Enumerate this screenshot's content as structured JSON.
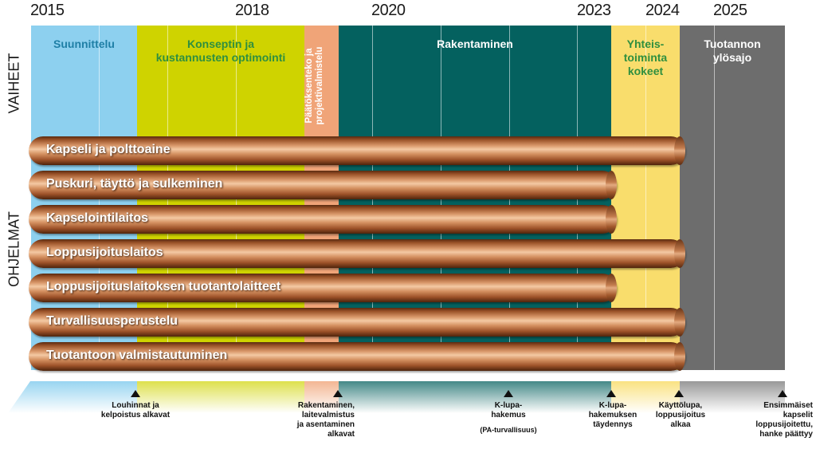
{
  "years": [
    "2015",
    "2018",
    "2020",
    "2023",
    "2024",
    "2025"
  ],
  "side_labels": {
    "phases": "VAIHEET",
    "programs": "OHJELMAT"
  },
  "phases": [
    {
      "lines": [
        "Suunnittelu"
      ],
      "color": "#8dd0ef",
      "text_color": "#1f7fa6"
    },
    {
      "lines": [
        "Konseptin ja",
        "kustannusten optimointi"
      ],
      "color": "#cfd300",
      "text_color": "#2f8f3f"
    },
    {
      "lines": [
        "Päätöksenteko ja",
        "projektivalmistelu"
      ],
      "color": "#f0a478",
      "text_color": "#ffffff"
    },
    {
      "lines": [
        "Rakentaminen"
      ],
      "color": "#04615f",
      "text_color": "#ffffff"
    },
    {
      "lines": [
        "Yhteis-",
        "toiminta",
        "kokeet"
      ],
      "color": "#f9dd6c",
      "text_color": "#2f8f3f"
    },
    {
      "lines": [
        "Tuotannon",
        "ylösajo"
      ],
      "color": "#6d6d6d",
      "text_color": "#ffffff"
    }
  ],
  "programs": [
    {
      "label": "Kapseli ja polttoaine",
      "end_year": "2024"
    },
    {
      "label": "Puskuri, täyttö ja sulkeminen",
      "end_year": "2023"
    },
    {
      "label": "Kapselointilaitos",
      "end_year": "2023"
    },
    {
      "label": "Loppusijoituslaitos",
      "end_year": "2024"
    },
    {
      "label": "Loppusijoituslaitoksen tuotantolaitteet",
      "end_year": "2023"
    },
    {
      "label": "Turvallisuusperustelu",
      "end_year": "2024"
    },
    {
      "label": "Tuotantoon valmistautuminen",
      "end_year": "2024"
    }
  ],
  "milestones": [
    {
      "lines": [
        "Louhinnat ja",
        "kelpoistus alkavat"
      ]
    },
    {
      "lines": [
        "Rakentaminen,",
        "laitevalmistus",
        "ja asentaminen",
        "alkavat"
      ]
    },
    {
      "lines": [
        "K-lupa-",
        "hakemus",
        "",
        "(PA-turvallisuus)"
      ]
    },
    {
      "lines": [
        "K-lupa-",
        "hakemuksen",
        "täydennys"
      ]
    },
    {
      "lines": [
        "Käyttölupa,",
        "loppusijoitus",
        "alkaa"
      ]
    },
    {
      "lines": [
        "Ensimmäiset",
        "kapselit",
        "loppusijoitettu,",
        "hanke päättyy"
      ]
    }
  ]
}
